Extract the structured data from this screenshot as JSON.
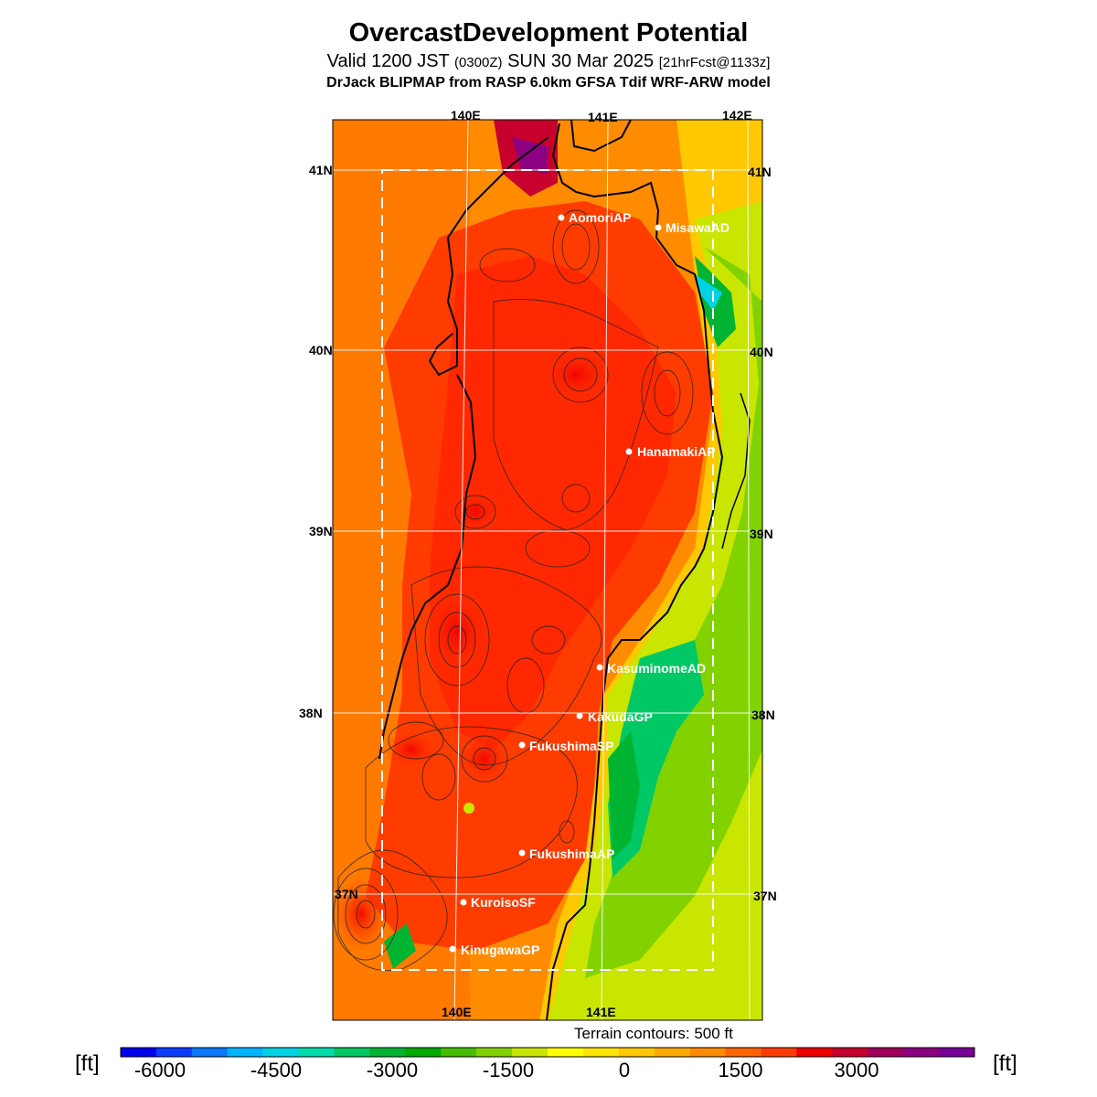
{
  "header": {
    "title": "OvercastDevelopment Potential",
    "subtitle_main": "Valid 1200 JST",
    "subtitle_utc": "(0300Z)",
    "subtitle_date": "SUN 30 Mar 2025",
    "subtitle_fcst": "[21hrFcst@1133z]",
    "model": "DrJack BLIPMAP from RASP 6.0km GFSA Tdif WRF-ARW model"
  },
  "map": {
    "lat_labels": [
      "41N",
      "40N",
      "39N",
      "38N",
      "37N"
    ],
    "lon_labels_top": [
      "140E",
      "141E",
      "142E"
    ],
    "lon_labels_bottom": [
      "140E",
      "141E"
    ],
    "sites": [
      {
        "name": "AomoriAP"
      },
      {
        "name": "MisawaAD"
      },
      {
        "name": "HanamakiAP"
      },
      {
        "name": "KasuminomeAD"
      },
      {
        "name": "KakudaGP"
      },
      {
        "name": "FukushimaSP"
      },
      {
        "name": "FukushimaAP"
      },
      {
        "name": "KuroisoSF"
      },
      {
        "name": "KinugawaGP"
      }
    ],
    "terrain_note": "Terrain contours: 500 ft"
  },
  "colorbar": {
    "unit_left": "[ft]",
    "unit_right": "[ft]",
    "tick_labels": [
      "-6000",
      "-4500",
      "-3000",
      "-1500",
      "0",
      "1500",
      "3000"
    ],
    "colors": [
      "#0000f0",
      "#0a3cff",
      "#0a78ff",
      "#00b4ff",
      "#00d2e6",
      "#00dcaa",
      "#00c864",
      "#00b432",
      "#00aa00",
      "#46be00",
      "#82d200",
      "#c8e600",
      "#ffff00",
      "#ffe600",
      "#ffc800",
      "#ffaa00",
      "#ff8c00",
      "#ff6400",
      "#ff3c00",
      "#f00000",
      "#c8002d",
      "#a0005a",
      "#8c0082",
      "#780096"
    ]
  }
}
